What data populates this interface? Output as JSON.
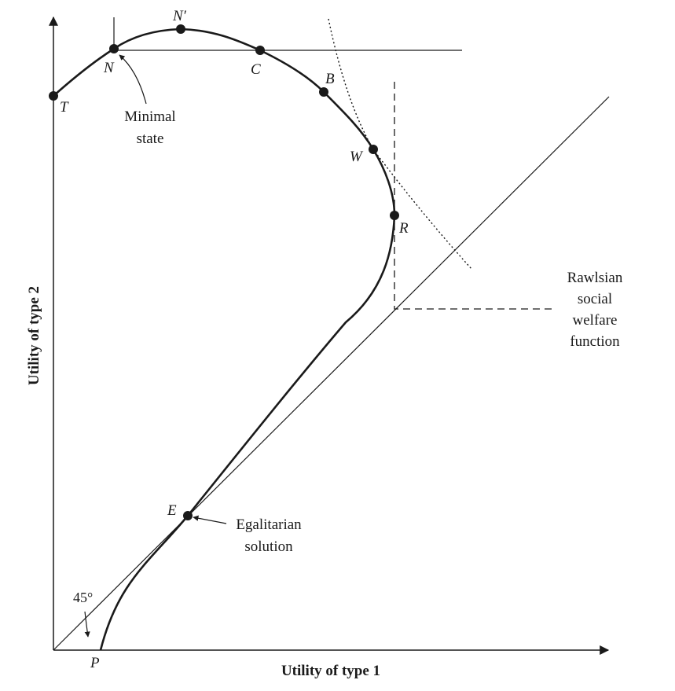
{
  "axes": {
    "x_title": "Utility of type 1",
    "y_title": "Utility of type 2"
  },
  "points": {
    "T": "T",
    "N": "N",
    "N_prime": "N′",
    "C": "C",
    "B": "B",
    "W": "W",
    "R": "R",
    "E": "E",
    "P": "P"
  },
  "annotations": {
    "minimal_state": [
      "Minimal",
      "state"
    ],
    "rawlsian": [
      "Rawlsian",
      "social",
      "welfare",
      "function"
    ],
    "egalitarian": [
      "Egalitarian",
      "solution"
    ],
    "angle": "45°"
  }
}
